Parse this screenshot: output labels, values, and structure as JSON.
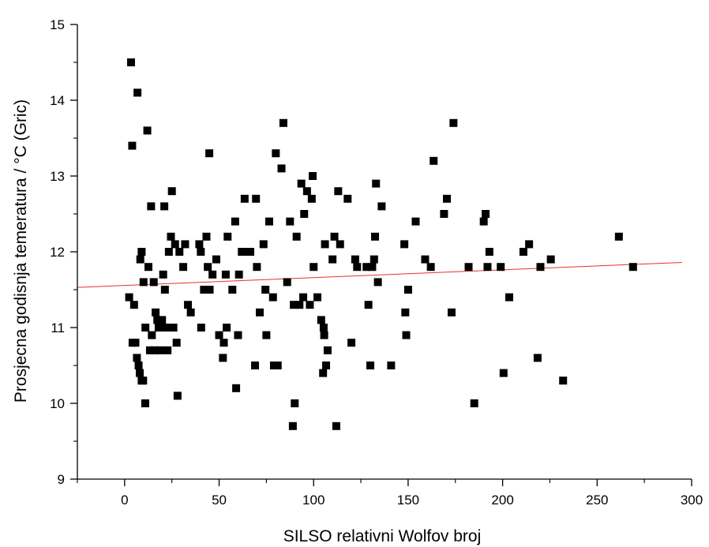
{
  "chart_data": {
    "type": "scatter",
    "title": "",
    "xlabel": "SILSO relativni Wolfov broj",
    "ylabel": "Prosjecna godisnja temeratura / °C (Gric)",
    "xlim": [
      -25,
      300
    ],
    "ylim": [
      9,
      15
    ],
    "xticks": [
      0,
      50,
      100,
      150,
      200,
      250,
      300
    ],
    "yticks": [
      9,
      10,
      11,
      12,
      13,
      14,
      15
    ],
    "grid": false,
    "legend": "none",
    "marker": "square",
    "colors": {
      "points": "#000000",
      "fit_line": "#e8302c",
      "axes": "#000000"
    },
    "series": [
      {
        "points": [
          [
            3.4,
            14.5
          ],
          [
            6.8,
            14.1
          ],
          [
            12.0,
            13.6
          ],
          [
            4.0,
            13.4
          ],
          [
            25.0,
            12.8
          ],
          [
            14.0,
            12.6
          ],
          [
            21.0,
            12.6
          ],
          [
            4.2,
            10.8
          ],
          [
            5.7,
            10.8
          ],
          [
            6.5,
            10.6
          ],
          [
            7.4,
            10.5
          ],
          [
            8.0,
            10.4
          ],
          [
            9.0,
            10.3
          ],
          [
            9.8,
            10.3
          ],
          [
            10.9,
            10.0
          ],
          [
            2.4,
            11.4
          ],
          [
            5.0,
            11.3
          ],
          [
            8.3,
            11.9
          ],
          [
            9.0,
            12.0
          ],
          [
            10.0,
            11.6
          ],
          [
            11.0,
            11.0
          ],
          [
            12.6,
            11.8
          ],
          [
            13.4,
            10.7
          ],
          [
            14.4,
            10.9
          ],
          [
            15.4,
            11.6
          ],
          [
            15.8,
            10.7
          ],
          [
            16.4,
            11.2
          ],
          [
            17.3,
            11.1
          ],
          [
            18.0,
            11.0
          ],
          [
            19.0,
            10.7
          ],
          [
            19.8,
            11.1
          ],
          [
            20.4,
            11.7
          ],
          [
            21.3,
            11.5
          ],
          [
            22.0,
            11.0
          ],
          [
            22.7,
            10.7
          ],
          [
            23.4,
            12.0
          ],
          [
            24.5,
            12.2
          ],
          [
            25.8,
            11.0
          ],
          [
            26.7,
            12.1
          ],
          [
            27.5,
            10.8
          ],
          [
            28.0,
            10.1
          ],
          [
            29.0,
            12.0
          ],
          [
            31.0,
            11.8
          ],
          [
            32.0,
            12.1
          ],
          [
            33.5,
            11.3
          ],
          [
            35.0,
            11.2
          ],
          [
            39.5,
            12.1
          ],
          [
            40.3,
            12.0
          ],
          [
            40.5,
            11.0
          ],
          [
            42.0,
            11.5
          ],
          [
            43.3,
            12.2
          ],
          [
            44.0,
            11.8
          ],
          [
            44.8,
            13.3
          ],
          [
            45.0,
            11.5
          ],
          [
            46.5,
            11.7
          ],
          [
            48.5,
            11.9
          ],
          [
            50.0,
            10.9
          ],
          [
            52.0,
            10.6
          ],
          [
            52.5,
            10.8
          ],
          [
            53.5,
            11.7
          ],
          [
            54.0,
            11.0
          ],
          [
            54.5,
            12.2
          ],
          [
            57.0,
            11.5
          ],
          [
            58.5,
            12.4
          ],
          [
            59.0,
            10.2
          ],
          [
            60.0,
            10.9
          ],
          [
            60.5,
            11.7
          ],
          [
            62.0,
            12.0
          ],
          [
            63.5,
            12.7
          ],
          [
            64.5,
            12.0
          ],
          [
            66.5,
            12.0
          ],
          [
            69.0,
            10.5
          ],
          [
            69.5,
            12.7
          ],
          [
            70.0,
            11.8
          ],
          [
            71.5,
            11.2
          ],
          [
            73.5,
            12.1
          ],
          [
            74.5,
            11.5
          ],
          [
            75.0,
            10.9
          ],
          [
            76.5,
            12.4
          ],
          [
            78.5,
            11.4
          ],
          [
            79.0,
            10.5
          ],
          [
            80.0,
            13.3
          ],
          [
            81.0,
            10.5
          ],
          [
            83.0,
            13.1
          ],
          [
            84.0,
            13.7
          ],
          [
            86.0,
            11.6
          ],
          [
            87.5,
            12.4
          ],
          [
            89.0,
            9.7
          ],
          [
            89.5,
            11.3
          ],
          [
            90.0,
            10.0
          ],
          [
            91.0,
            12.2
          ],
          [
            92.5,
            11.3
          ],
          [
            93.5,
            12.9
          ],
          [
            94.5,
            11.4
          ],
          [
            95.0,
            12.5
          ],
          [
            96.5,
            12.8
          ],
          [
            98.0,
            11.3
          ],
          [
            99.0,
            12.7
          ],
          [
            99.5,
            13.0
          ],
          [
            100.0,
            11.8
          ],
          [
            102.0,
            11.4
          ],
          [
            104.0,
            11.1
          ],
          [
            105.0,
            10.4
          ],
          [
            105.3,
            11.0
          ],
          [
            105.6,
            10.9
          ],
          [
            106.0,
            12.1
          ],
          [
            106.6,
            10.5
          ],
          [
            107.4,
            10.7
          ],
          [
            110.0,
            11.9
          ],
          [
            111.0,
            12.2
          ],
          [
            112.0,
            9.7
          ],
          [
            113.0,
            12.8
          ],
          [
            114.0,
            12.1
          ],
          [
            118.0,
            12.7
          ],
          [
            120.0,
            10.8
          ],
          [
            122.0,
            11.9
          ],
          [
            123.0,
            11.8
          ],
          [
            128.0,
            11.8
          ],
          [
            129.0,
            11.3
          ],
          [
            130.0,
            10.5
          ],
          [
            131.0,
            11.8
          ],
          [
            132.0,
            11.9
          ],
          [
            132.5,
            12.2
          ],
          [
            133.0,
            12.9
          ],
          [
            134.0,
            11.6
          ],
          [
            136.0,
            12.6
          ],
          [
            141.0,
            10.5
          ],
          [
            148.0,
            12.1
          ],
          [
            148.5,
            11.2
          ],
          [
            149.0,
            10.9
          ],
          [
            150.0,
            11.5
          ],
          [
            154.0,
            12.4
          ],
          [
            159.0,
            11.9
          ],
          [
            162.0,
            11.8
          ],
          [
            163.5,
            13.2
          ],
          [
            169.0,
            12.5
          ],
          [
            170.5,
            12.7
          ],
          [
            173.0,
            11.2
          ],
          [
            174.0,
            13.7
          ],
          [
            182.0,
            11.8
          ],
          [
            185.0,
            10.0
          ],
          [
            190.0,
            12.4
          ],
          [
            191.0,
            12.5
          ],
          [
            192.0,
            11.8
          ],
          [
            193.0,
            12.0
          ],
          [
            199.0,
            11.8
          ],
          [
            200.5,
            10.4
          ],
          [
            203.5,
            11.4
          ],
          [
            211.0,
            12.0
          ],
          [
            214.0,
            12.1
          ],
          [
            218.5,
            10.6
          ],
          [
            220.0,
            11.8
          ],
          [
            225.5,
            11.9
          ],
          [
            232.0,
            10.3
          ],
          [
            261.5,
            12.2
          ],
          [
            269.0,
            11.8
          ]
        ]
      }
    ],
    "fit_line": {
      "x": [
        -25,
        295
      ],
      "y": [
        11.53,
        11.86
      ]
    }
  }
}
